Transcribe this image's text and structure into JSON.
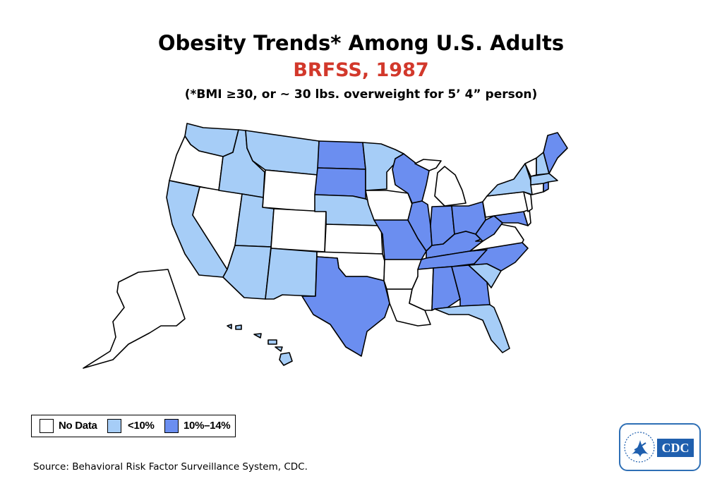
{
  "header": {
    "title": "Obesity Trends* Among U.S. Adults",
    "subtitle": "BRFSS, 1987",
    "note": "(*BMI ≥30, or ~ 30 lbs. overweight for 5’ 4” person)"
  },
  "colors": {
    "no_data": "#ffffff",
    "lt10": "#a6cdf7",
    "p10_14": "#6b8ef0",
    "subtitle": "#d2382b"
  },
  "legend": [
    {
      "label": "No Data",
      "category": "no_data"
    },
    {
      "label": "<10%",
      "category": "lt10"
    },
    {
      "label": "10%–14%",
      "category": "p10_14"
    }
  ],
  "states": {
    "WA": "lt10",
    "OR": "no_data",
    "CA": "lt10",
    "NV": "no_data",
    "ID": "lt10",
    "MT": "lt10",
    "WY": "no_data",
    "UT": "lt10",
    "AZ": "lt10",
    "CO": "no_data",
    "NM": "lt10",
    "ND": "p10_14",
    "SD": "p10_14",
    "NE": "lt10",
    "KS": "no_data",
    "OK": "no_data",
    "TX": "p10_14",
    "MN": "lt10",
    "IA": "no_data",
    "MO": "p10_14",
    "AR": "no_data",
    "LA": "no_data",
    "WI": "p10_14",
    "IL": "p10_14",
    "MI": "no_data",
    "IN": "p10_14",
    "OH": "p10_14",
    "KY": "p10_14",
    "TN": "p10_14",
    "MS": "no_data",
    "AL": "p10_14",
    "GA": "p10_14",
    "FL": "lt10",
    "SC": "lt10",
    "NC": "p10_14",
    "VA": "no_data",
    "WV": "p10_14",
    "MD": "p10_14",
    "DE": "no_data",
    "PA": "no_data",
    "NY": "lt10",
    "NJ": "no_data",
    "CT": "no_data",
    "RI": "p10_14",
    "MA": "lt10",
    "VT": "no_data",
    "NH": "lt10",
    "ME": "p10_14",
    "AK": "no_data",
    "HI": "lt10"
  },
  "source": "Source: Behavioral Risk Factor Surveillance System, CDC.",
  "logo": {
    "text": "CDC",
    "icon": "hhs-eagle-icon"
  }
}
